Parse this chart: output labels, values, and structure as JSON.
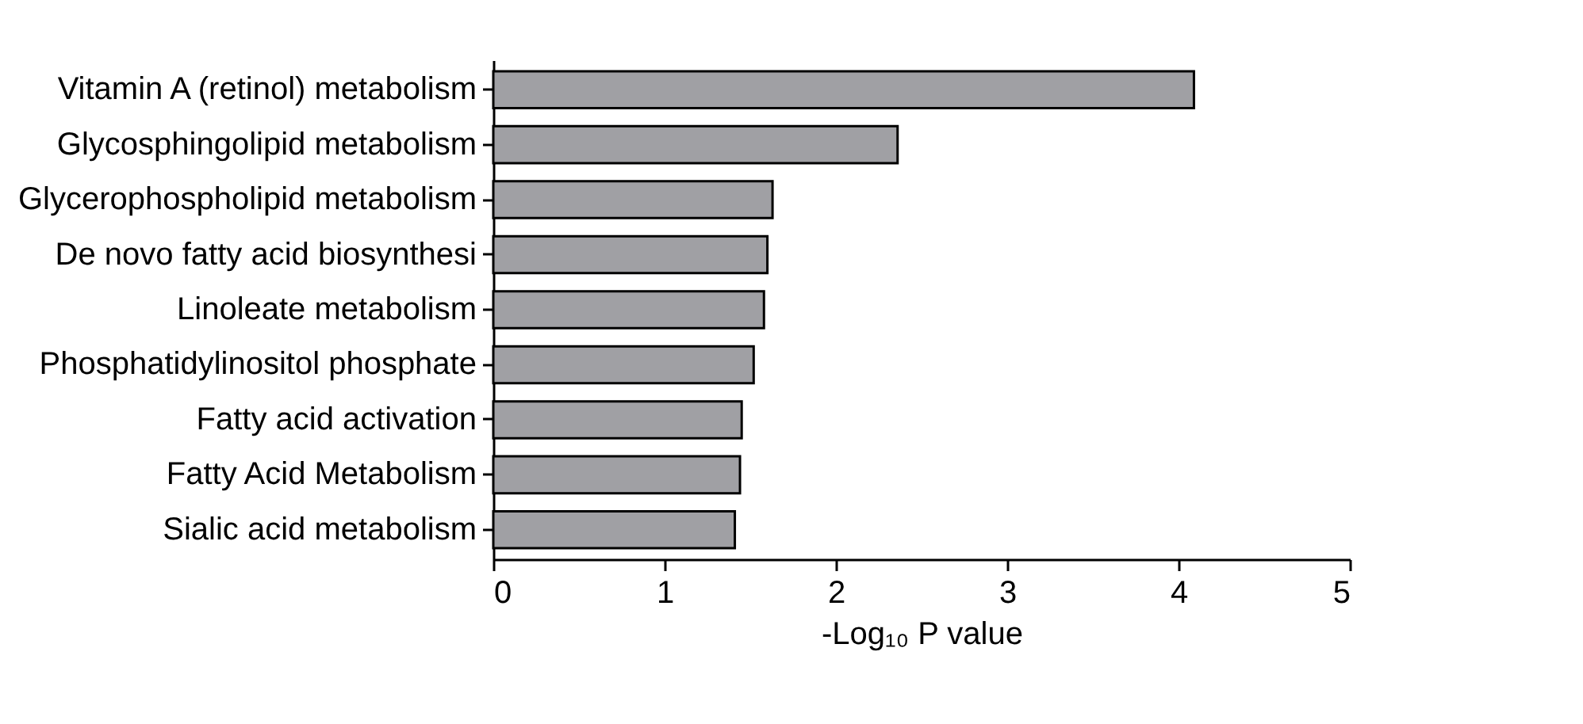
{
  "chart_data": {
    "type": "bar",
    "orientation": "horizontal",
    "xlabel": "-Log₁₀ P value",
    "categories": [
      "Vitamin A (retinol) metabolism",
      "Glycosphingolipid metabolism",
      "Glycerophospholipid metabolism",
      "De novo fatty acid biosynthesi",
      "Linoleate metabolism",
      "Phosphatidylinositol phosphate",
      "Fatty acid activation",
      "Fatty Acid Metabolism",
      "Sialic acid metabolism"
    ],
    "values": [
      4.09,
      2.36,
      1.63,
      1.6,
      1.58,
      1.52,
      1.45,
      1.44,
      1.41
    ],
    "color": "#a0a0a4",
    "xlim": [
      0,
      5
    ],
    "xticks": [
      0,
      1,
      2,
      3,
      4,
      5
    ],
    "grid": false
  }
}
